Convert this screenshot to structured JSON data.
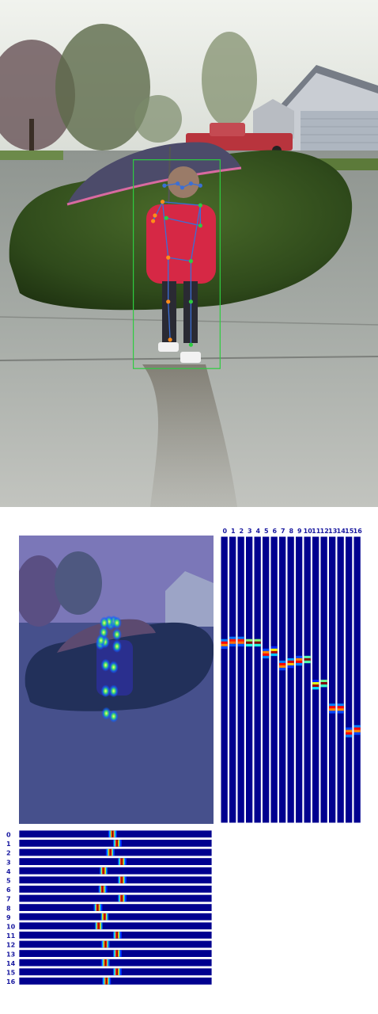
{
  "figure": {
    "keypoint_labels": [
      "0",
      "1",
      "2",
      "3",
      "4",
      "5",
      "6",
      "7",
      "8",
      "9",
      "10",
      "11",
      "12",
      "13",
      "14",
      "15",
      "16"
    ],
    "skeleton_edges": [
      [
        0,
        1
      ],
      [
        0,
        2
      ],
      [
        1,
        3
      ],
      [
        2,
        4
      ],
      [
        5,
        6
      ],
      [
        5,
        7
      ],
      [
        7,
        9
      ],
      [
        6,
        8
      ],
      [
        8,
        10
      ],
      [
        5,
        11
      ],
      [
        6,
        12
      ],
      [
        11,
        12
      ],
      [
        11,
        13
      ],
      [
        13,
        15
      ],
      [
        12,
        14
      ],
      [
        14,
        16
      ]
    ],
    "keypoints_y_fraction": [
      0.37,
      0.362,
      0.362,
      0.366,
      0.366,
      0.405,
      0.398,
      0.445,
      0.436,
      0.43,
      0.425,
      0.515,
      0.508,
      0.595,
      0.595,
      0.68,
      0.67
    ],
    "keypoints_x_fraction": [
      0.482,
      0.505,
      0.47,
      0.53,
      0.435,
      0.53,
      0.43,
      0.53,
      0.405,
      0.44,
      0.41,
      0.505,
      0.445,
      0.505,
      0.445,
      0.505,
      0.45
    ],
    "colors": {
      "person_box": "#2ecc40",
      "head_links": "#3b6fd6",
      "left_side": "#2ecc40",
      "right_side": "#ff8c1a",
      "heatmap_background": "#00008f",
      "heatmap_bar_border": "#ffffff",
      "axis_label": "#1a1aa0"
    }
  }
}
